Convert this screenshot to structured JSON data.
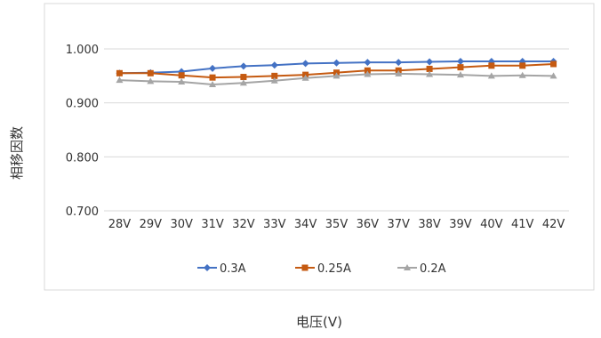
{
  "chart_data": {
    "type": "line",
    "xlabel": "电压(V)",
    "ylabel": "相移因数",
    "categories": [
      "28V",
      "29V",
      "30V",
      "31V",
      "32V",
      "33V",
      "34V",
      "35V",
      "36V",
      "37V",
      "38V",
      "39V",
      "40V",
      "41V",
      "42V"
    ],
    "ylim": [
      0.7,
      1.0
    ],
    "yticks": [
      "0.700",
      "0.800",
      "0.900",
      "1.000"
    ],
    "grid": true,
    "legend_position": "bottom",
    "series": [
      {
        "name": "0.3A",
        "color": "#4472c4",
        "marker": "diamond",
        "values": [
          0.955,
          0.956,
          0.958,
          0.964,
          0.968,
          0.97,
          0.973,
          0.974,
          0.975,
          0.975,
          0.976,
          0.977,
          0.977,
          0.977,
          0.977
        ]
      },
      {
        "name": "0.25A",
        "color": "#c55a11",
        "marker": "square",
        "values": [
          0.955,
          0.955,
          0.951,
          0.947,
          0.948,
          0.95,
          0.952,
          0.956,
          0.96,
          0.96,
          0.963,
          0.966,
          0.969,
          0.969,
          0.972
        ]
      },
      {
        "name": "0.2A",
        "color": "#a5a5a5",
        "marker": "triangle",
        "values": [
          0.942,
          0.94,
          0.939,
          0.934,
          0.937,
          0.941,
          0.946,
          0.95,
          0.953,
          0.954,
          0.953,
          0.952,
          0.95,
          0.951,
          0.95
        ]
      }
    ]
  }
}
